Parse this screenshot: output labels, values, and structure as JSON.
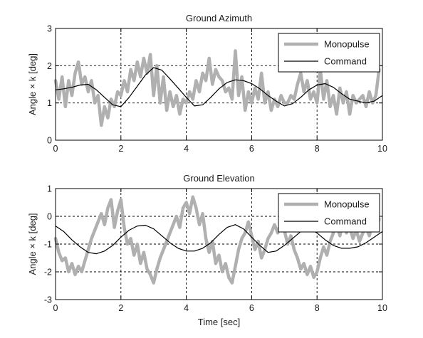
{
  "chart_data": [
    {
      "type": "line",
      "title": "Ground Azimuth",
      "xlabel": "",
      "ylabel": "Angle × k [deg]",
      "xlim": [
        0,
        10
      ],
      "ylim": [
        0,
        3
      ],
      "xticks": [
        "0",
        "2",
        "4",
        "6",
        "8",
        "10"
      ],
      "yticks": [
        "0",
        "1",
        "2",
        "3"
      ],
      "grid": true,
      "legend_position": "top-right",
      "series": [
        {
          "name": "Monopulse",
          "color": "#b0b0b0",
          "x": [
            0,
            0.1,
            0.2,
            0.3,
            0.4,
            0.5,
            0.6,
            0.7,
            0.8,
            0.9,
            1.0,
            1.1,
            1.2,
            1.3,
            1.4,
            1.5,
            1.6,
            1.7,
            1.8,
            1.9,
            2.0,
            2.1,
            2.2,
            2.3,
            2.4,
            2.5,
            2.6,
            2.7,
            2.8,
            2.9,
            3.0,
            3.1,
            3.2,
            3.3,
            3.4,
            3.5,
            3.6,
            3.7,
            3.8,
            3.9,
            4.0,
            4.1,
            4.2,
            4.3,
            4.4,
            4.5,
            4.6,
            4.7,
            4.8,
            4.9,
            5.0,
            5.1,
            5.2,
            5.3,
            5.4,
            5.5,
            5.6,
            5.7,
            5.8,
            5.9,
            6.0,
            6.1,
            6.2,
            6.3,
            6.4,
            6.5,
            6.6,
            6.7,
            6.8,
            6.9,
            7.0,
            7.1,
            7.2,
            7.3,
            7.4,
            7.5,
            7.6,
            7.7,
            7.8,
            7.9,
            8.0,
            8.1,
            8.2,
            8.3,
            8.4,
            8.5,
            8.6,
            8.7,
            8.8,
            8.9,
            9.0,
            9.1,
            9.2,
            9.3,
            9.4,
            9.5,
            9.6,
            9.7,
            9.8,
            9.9
          ],
          "y": [
            1.6,
            1.1,
            1.7,
            0.9,
            1.6,
            1.2,
            1.8,
            2.1,
            1.5,
            1.7,
            1.3,
            1.6,
            1.0,
            1.2,
            0.4,
            0.9,
            0.6,
            1.1,
            0.9,
            1.3,
            1.2,
            1.6,
            1.3,
            1.9,
            1.6,
            2.1,
            1.7,
            2.2,
            1.8,
            2.3,
            1.2,
            2.0,
            1.0,
            1.7,
            0.8,
            1.3,
            0.9,
            1.2,
            0.7,
            1.1,
            1.0,
            1.3,
            1.1,
            1.6,
            1.3,
            1.8,
            1.6,
            2.2,
            1.5,
            1.9,
            1.7,
            1.6,
            1.3,
            1.4,
            1.1,
            2.4,
            1.2,
            1.7,
            0.8,
            1.3,
            1.0,
            1.4,
            1.1,
            1.8,
            1.0,
            1.3,
            0.8,
            1.1,
            0.9,
            1.2,
            1.0,
            1.0,
            1.2,
            1.1,
            1.5,
            1.8,
            1.3,
            1.6,
            1.1,
            1.3,
            1.0,
            1.9,
            1.1,
            1.6,
            0.9,
            1.2,
            0.7,
            1.4,
            1.0,
            1.3,
            0.7,
            1.2,
            1.0,
            1.1,
            1.2,
            0.9,
            1.3,
            1.0,
            1.2,
            1.9
          ]
        },
        {
          "name": "Command",
          "color": "#000000",
          "x": [
            0,
            0.25,
            0.5,
            0.75,
            1.0,
            1.25,
            1.5,
            1.75,
            2.0,
            2.25,
            2.5,
            2.75,
            3.0,
            3.25,
            3.5,
            3.75,
            4.0,
            4.25,
            4.5,
            4.75,
            5.0,
            5.25,
            5.5,
            5.75,
            6.0,
            6.25,
            6.5,
            6.75,
            7.0,
            7.25,
            7.5,
            7.75,
            8.0,
            8.25,
            8.5,
            8.75,
            9.0,
            9.25,
            9.5,
            9.75,
            10.0
          ],
          "y": [
            1.35,
            1.38,
            1.42,
            1.48,
            1.5,
            1.35,
            1.15,
            0.95,
            0.9,
            1.15,
            1.45,
            1.75,
            1.95,
            1.88,
            1.65,
            1.4,
            1.15,
            0.92,
            0.95,
            1.15,
            1.38,
            1.55,
            1.62,
            1.6,
            1.52,
            1.38,
            1.2,
            1.05,
            0.92,
            0.98,
            1.15,
            1.35,
            1.48,
            1.52,
            1.42,
            1.25,
            1.1,
            1.05,
            1.0,
            1.05,
            1.2
          ]
        }
      ]
    },
    {
      "type": "line",
      "title": "Ground Elevation",
      "xlabel": "Time [sec]",
      "ylabel": "Angle × k [deg]",
      "xlim": [
        0,
        10
      ],
      "ylim": [
        -3,
        1
      ],
      "xticks": [
        "0",
        "2",
        "4",
        "6",
        "8",
        "10"
      ],
      "yticks": [
        "-3",
        "-2",
        "-1",
        "0",
        "1"
      ],
      "grid": true,
      "legend_position": "top-right",
      "series": [
        {
          "name": "Monopulse",
          "color": "#b0b0b0",
          "x": [
            0,
            0.1,
            0.2,
            0.3,
            0.4,
            0.5,
            0.6,
            0.7,
            0.8,
            0.9,
            1.0,
            1.1,
            1.2,
            1.3,
            1.4,
            1.5,
            1.6,
            1.7,
            1.8,
            1.9,
            2.0,
            2.1,
            2.2,
            2.3,
            2.4,
            2.5,
            2.6,
            2.7,
            2.8,
            2.9,
            3.0,
            3.1,
            3.2,
            3.3,
            3.4,
            3.5,
            3.6,
            3.7,
            3.8,
            3.9,
            4.0,
            4.1,
            4.2,
            4.3,
            4.4,
            4.5,
            4.6,
            4.7,
            4.8,
            4.9,
            5.0,
            5.1,
            5.2,
            5.3,
            5.4,
            5.5,
            5.6,
            5.7,
            5.8,
            5.9,
            6.0,
            6.1,
            6.2,
            6.3,
            6.4,
            6.5,
            6.6,
            6.7,
            6.8,
            6.9,
            7.0,
            7.1,
            7.2,
            7.3,
            7.4,
            7.5,
            7.6,
            7.7,
            7.8,
            7.9,
            8.0,
            8.1,
            8.2,
            8.3,
            8.4,
            8.5,
            8.6,
            8.7,
            8.8,
            8.9,
            9.0,
            9.1,
            9.2,
            9.3,
            9.4,
            9.5,
            9.6,
            9.7,
            9.8,
            9.9
          ],
          "y": [
            -0.8,
            -1.3,
            -1.6,
            -1.5,
            -2.0,
            -1.7,
            -2.1,
            -1.8,
            -2.0,
            -1.6,
            -1.2,
            -0.8,
            -0.5,
            -0.2,
            0.1,
            -0.3,
            0.3,
            0.6,
            -0.4,
            0.2,
            0.6,
            -0.4,
            -1.0,
            -0.8,
            -1.4,
            -1.0,
            -1.7,
            -1.3,
            -1.9,
            -2.1,
            -2.4,
            -1.9,
            -1.5,
            -1.2,
            -0.9,
            -0.6,
            -0.3,
            0.0,
            -0.4,
            0.3,
            0.5,
            0.1,
            0.7,
            0.3,
            -0.3,
            0.1,
            -0.8,
            -1.3,
            -0.9,
            -1.7,
            -1.4,
            -2.0,
            -1.7,
            -2.2,
            -2.4,
            -1.8,
            -1.2,
            -0.8,
            -0.6,
            -0.2,
            -0.7,
            -1.2,
            -0.9,
            -1.5,
            -1.2,
            -0.8,
            -0.6,
            -0.3,
            -0.6,
            -0.2,
            -0.5,
            -1.0,
            -0.7,
            -1.2,
            -1.5,
            -1.9,
            -1.7,
            -2.1,
            -1.8,
            -2.2,
            -2.0,
            -1.5,
            -1.1,
            -1.4,
            -0.9,
            -0.6,
            -0.3,
            -0.7,
            -0.2,
            -0.6,
            -0.4,
            -0.8,
            -0.5,
            -0.9,
            -0.6,
            -0.4,
            -0.7,
            -0.3,
            -0.5,
            -0.1
          ]
        },
        {
          "name": "Command",
          "color": "#000000",
          "x": [
            0,
            0.25,
            0.5,
            0.75,
            1.0,
            1.25,
            1.5,
            1.75,
            2.0,
            2.25,
            2.5,
            2.75,
            3.0,
            3.25,
            3.5,
            3.75,
            4.0,
            4.25,
            4.5,
            4.75,
            5.0,
            5.25,
            5.5,
            5.75,
            6.0,
            6.25,
            6.5,
            6.75,
            7.0,
            7.25,
            7.5,
            7.75,
            8.0,
            8.25,
            8.5,
            8.75,
            9.0,
            9.25,
            9.5,
            9.75,
            10.0
          ],
          "y": [
            -0.35,
            -0.55,
            -0.85,
            -1.1,
            -1.3,
            -1.35,
            -1.25,
            -1.05,
            -0.75,
            -0.5,
            -0.35,
            -0.32,
            -0.45,
            -0.7,
            -0.95,
            -1.15,
            -1.25,
            -1.25,
            -1.15,
            -0.95,
            -0.65,
            -0.4,
            -0.3,
            -0.45,
            -0.75,
            -1.05,
            -1.3,
            -1.25,
            -1.05,
            -0.8,
            -0.55,
            -0.45,
            -0.6,
            -0.85,
            -1.05,
            -1.15,
            -1.15,
            -1.1,
            -0.95,
            -0.75,
            -0.55
          ]
        }
      ]
    }
  ]
}
